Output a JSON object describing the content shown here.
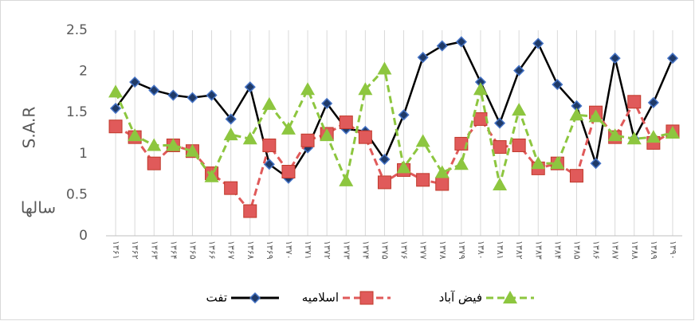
{
  "chart_data": {
    "type": "line",
    "ylabel": "S.A.R",
    "xlabel": "سالها",
    "categories": [
      "۱۳۶۱",
      "۱۳۶۲",
      "۱۳۶۳",
      "۱۳۶۴",
      "۱۳۶۵",
      "۱۳۶۶",
      "۱۳۶۷",
      "۱۳۶۸",
      "۱۳۶۹",
      "۱۳۷۰",
      "۱۳۷۱",
      "۱۳۷۲",
      "۱۳۷۳",
      "۱۳۷۴",
      "۱۳۷۵",
      "۱۳۷۶",
      "۱۳۷۷",
      "۱۳۷۸",
      "۱۳۷۹",
      "۱۳۸۰",
      "۱۳۸۱",
      "۱۳۸۲",
      "۱۳۸۳",
      "۱۳۸۴",
      "۱۳۸۵",
      "۱۳۸۶",
      "۱۳۸۷",
      "۱۳۸۸",
      "۱۳۸۹",
      "۱۳۹۰"
    ],
    "series": [
      {
        "name": "تفت",
        "color": "#000000",
        "marker": "diamond",
        "dashed": false,
        "values": [
          1.55,
          1.87,
          1.77,
          1.71,
          1.68,
          1.71,
          1.42,
          1.81,
          0.87,
          0.7,
          1.07,
          1.61,
          1.3,
          1.27,
          0.93,
          1.47,
          2.17,
          2.31,
          2.36,
          1.87,
          1.37,
          2.01,
          2.34,
          1.84,
          1.58,
          0.88,
          2.16,
          1.18,
          1.62,
          2.16
        ]
      },
      {
        "name": "اسلامیه",
        "color": "#e05a5a",
        "marker": "square",
        "dashed": true,
        "values": [
          1.33,
          1.2,
          0.88,
          1.1,
          1.03,
          0.76,
          0.58,
          0.3,
          1.1,
          0.78,
          1.16,
          1.24,
          1.38,
          1.2,
          0.65,
          0.8,
          0.68,
          0.63,
          1.12,
          1.42,
          1.08,
          1.1,
          0.82,
          0.88,
          0.73,
          1.5,
          1.2,
          1.63,
          1.13,
          1.27
        ]
      },
      {
        "name": "فیض آباد",
        "color": "#8dc63f",
        "marker": "triangle",
        "dashed": true,
        "values": [
          1.75,
          1.22,
          1.1,
          1.1,
          1.03,
          0.72,
          1.23,
          1.18,
          1.6,
          1.3,
          1.78,
          1.22,
          0.67,
          1.78,
          2.03,
          0.83,
          1.15,
          0.77,
          0.87,
          1.78,
          0.62,
          1.53,
          0.88,
          0.88,
          1.47,
          1.45,
          1.22,
          1.18,
          1.2,
          1.25
        ]
      }
    ],
    "ylim": [
      0,
      2.5
    ],
    "yticks": [
      0,
      0.5,
      1,
      1.5,
      2,
      2.5
    ],
    "grid": "x",
    "legend": "bottom"
  }
}
